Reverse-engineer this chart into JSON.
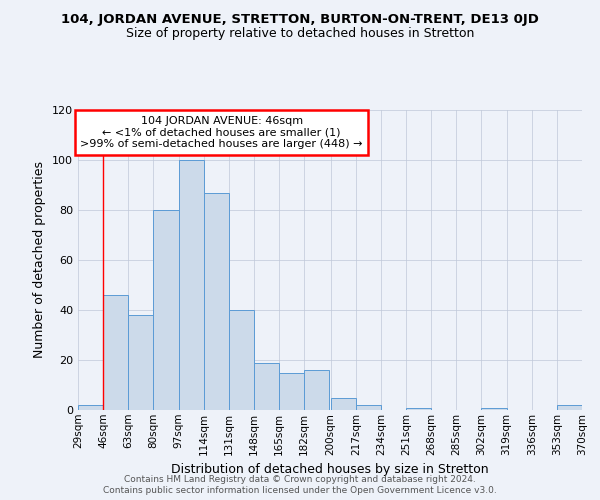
{
  "title_line1": "104, JORDAN AVENUE, STRETTON, BURTON-ON-TRENT, DE13 0JD",
  "title_line2": "Size of property relative to detached houses in Stretton",
  "xlabel": "Distribution of detached houses by size in Stretton",
  "ylabel": "Number of detached properties",
  "bin_edges": [
    29,
    46,
    63,
    80,
    97,
    114,
    131,
    148,
    165,
    182,
    200,
    217,
    234,
    251,
    268,
    285,
    302,
    319,
    336,
    353,
    370
  ],
  "counts": [
    2,
    46,
    38,
    80,
    100,
    87,
    40,
    19,
    15,
    16,
    5,
    2,
    0,
    1,
    0,
    0,
    1,
    0,
    0,
    2
  ],
  "bar_facecolor": "#ccdaea",
  "bar_edgecolor": "#5b9bd5",
  "annotation_box_text_line1": "104 JORDAN AVENUE: 46sqm",
  "annotation_box_text_line2": "← <1% of detached houses are smaller (1)",
  "annotation_box_text_line3": ">99% of semi-detached houses are larger (448) →",
  "annotation_box_color": "white",
  "annotation_box_edgecolor": "red",
  "red_line_x": 46,
  "ylim": [
    0,
    120
  ],
  "yticks": [
    0,
    20,
    40,
    60,
    80,
    100,
    120
  ],
  "footer_line1": "Contains HM Land Registry data © Crown copyright and database right 2024.",
  "footer_line2": "Contains public sector information licensed under the Open Government Licence v3.0.",
  "background_color": "#eef2f9"
}
